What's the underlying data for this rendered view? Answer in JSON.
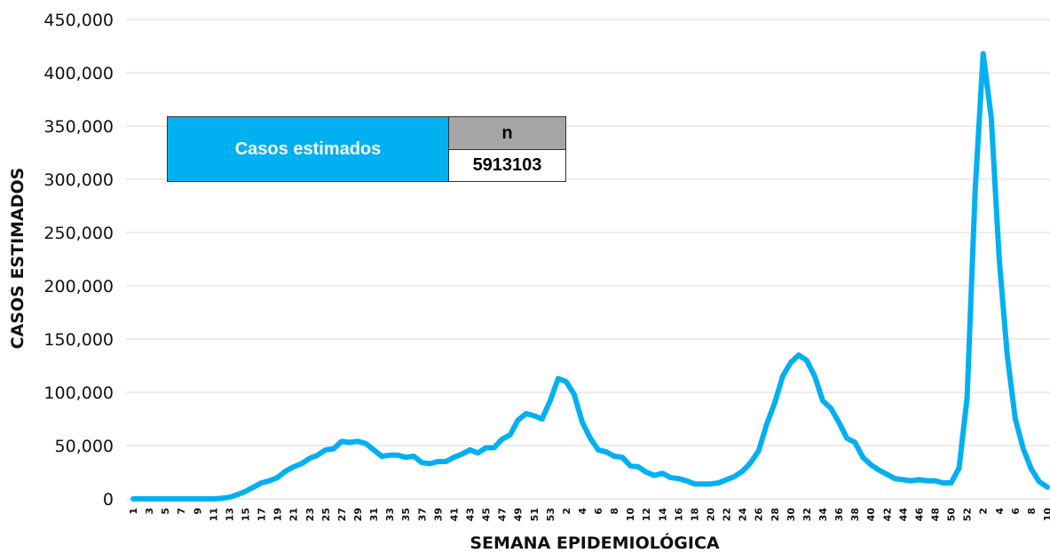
{
  "summary_table": {
    "label": "Casos estimados",
    "column_header": "n",
    "value": "5913103"
  },
  "chart_data": {
    "type": "line",
    "title": "",
    "xlabel": "SEMANA EPIDEMIOLÓGICA",
    "ylabel": "CASOS ESTIMADOS",
    "ylim": [
      0,
      450000
    ],
    "yticks": [
      "0",
      "50,000",
      "100,000",
      "150,000",
      "200,000",
      "250,000",
      "300,000",
      "350,000",
      "400,000",
      "450,000"
    ],
    "grid": true,
    "line_color": "#00b0f0",
    "categories": [
      "1",
      "2",
      "3",
      "4",
      "5",
      "6",
      "7",
      "8",
      "9",
      "10",
      "11",
      "12",
      "13",
      "14",
      "15",
      "16",
      "17",
      "18",
      "19",
      "20",
      "21",
      "22",
      "23",
      "24",
      "25",
      "26",
      "27",
      "28",
      "29",
      "30",
      "31",
      "32",
      "33",
      "34",
      "35",
      "36",
      "37",
      "38",
      "39",
      "40",
      "41",
      "42",
      "43",
      "44",
      "45",
      "46",
      "47",
      "48",
      "49",
      "50",
      "51",
      "52",
      "53",
      "1",
      "2",
      "3",
      "4",
      "5",
      "6",
      "7",
      "8",
      "9",
      "10",
      "11",
      "12",
      "13",
      "14",
      "15",
      "16",
      "17",
      "18",
      "19",
      "20",
      "21",
      "22",
      "23",
      "24",
      "25",
      "26",
      "27",
      "28",
      "29",
      "30",
      "31",
      "32",
      "33",
      "34",
      "35",
      "36",
      "37",
      "38",
      "39",
      "40",
      "41",
      "42",
      "43",
      "44",
      "45",
      "46",
      "47",
      "48",
      "49",
      "50",
      "51",
      "52",
      "1",
      "2",
      "3",
      "4",
      "5",
      "6",
      "7",
      "8",
      "9",
      "10"
    ],
    "values": [
      0,
      0,
      0,
      0,
      0,
      0,
      0,
      0,
      0,
      0,
      0,
      500,
      1500,
      4000,
      7000,
      11000,
      15000,
      17000,
      20000,
      26000,
      30000,
      33000,
      38000,
      41000,
      46000,
      47000,
      54000,
      53000,
      54000,
      52000,
      46000,
      40000,
      41000,
      41000,
      39000,
      40000,
      34000,
      33000,
      35000,
      35000,
      39000,
      42000,
      46000,
      43000,
      48000,
      48000,
      56000,
      60000,
      74000,
      80000,
      78000,
      75000,
      92000,
      113000,
      110000,
      98000,
      72000,
      57000,
      46000,
      44000,
      40000,
      39000,
      31000,
      30000,
      25000,
      22000,
      24000,
      20000,
      19000,
      17000,
      14000,
      14000,
      14000,
      15000,
      18000,
      21000,
      26000,
      34000,
      45000,
      70000,
      90000,
      115000,
      128000,
      135000,
      130000,
      115000,
      92000,
      85000,
      72000,
      57000,
      53000,
      39000,
      32000,
      27000,
      23000,
      19000,
      18000,
      17000,
      18000,
      17000,
      17000,
      15000,
      15000,
      29000,
      95000,
      290000,
      418000,
      358000,
      225000,
      135000,
      75000,
      47000,
      28000,
      16000,
      11000
    ],
    "xtick_labels": [
      "1",
      "3",
      "5",
      "7",
      "9",
      "11",
      "13",
      "15",
      "17",
      "19",
      "21",
      "23",
      "25",
      "27",
      "29",
      "31",
      "33",
      "35",
      "37",
      "39",
      "41",
      "43",
      "45",
      "47",
      "49",
      "51",
      "53",
      "2",
      "4",
      "6",
      "8",
      "10",
      "12",
      "14",
      "16",
      "18",
      "20",
      "22",
      "24",
      "26",
      "28",
      "30",
      "32",
      "34",
      "36",
      "38",
      "40",
      "42",
      "44",
      "46",
      "48",
      "50",
      "52",
      "2",
      "4",
      "6",
      "8",
      "10"
    ]
  }
}
